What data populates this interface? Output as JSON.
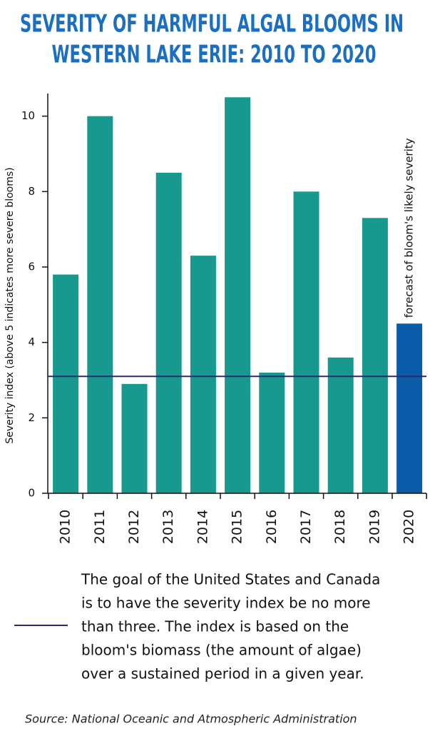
{
  "chart_data": {
    "type": "bar",
    "title_lines": [
      "SEVERITY OF HARMFUL ALGAL BLOOMS IN",
      "WESTERN LAKE ERIE: 2010 TO 2020"
    ],
    "y_label": "Severity index (above 5 indicates more severe blooms)",
    "categories": [
      "2010",
      "2011",
      "2012",
      "2013",
      "2014",
      "2015",
      "2016",
      "2017",
      "2018",
      "2019",
      "2020"
    ],
    "values": [
      5.8,
      10.0,
      2.9,
      8.5,
      6.3,
      10.5,
      3.2,
      8.0,
      3.6,
      7.3,
      4.5
    ],
    "colors": [
      "#18998f",
      "#18998f",
      "#18998f",
      "#18998f",
      "#18998f",
      "#18998f",
      "#18998f",
      "#18998f",
      "#18998f",
      "#18998f",
      "#0b5ca8"
    ],
    "annotation": "forecast of bloom's likely severity",
    "reference_line": {
      "value": 3.1,
      "color": "#2e2a6b"
    },
    "ylim": [
      0,
      10.6
    ],
    "yticks": [
      0,
      2,
      4,
      6,
      8,
      10
    ],
    "note_lines": [
      "The goal of the United States and Canada",
      "is to have the severity index be no more",
      "than three. The index is based on the",
      "bloom's biomass (the amount of algae)",
      "over a sustained period in a given year."
    ],
    "source": "Source: National Oceanic and Atmospheric Administration"
  }
}
